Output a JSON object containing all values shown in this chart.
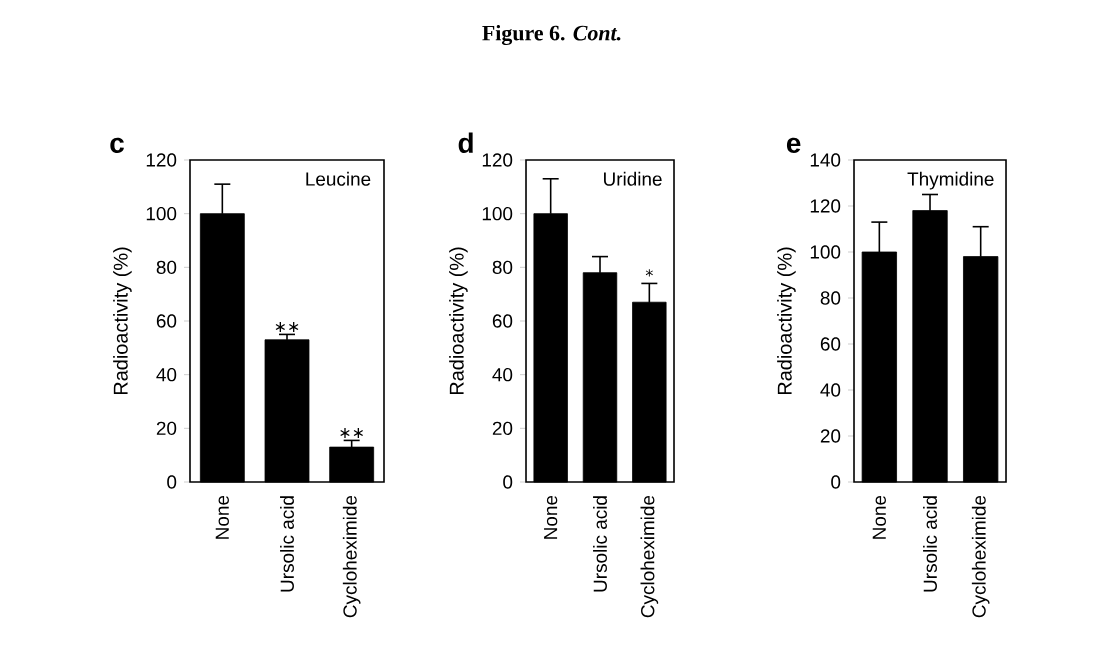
{
  "chart_data": [
    {
      "type": "bar",
      "title": "c",
      "subtitle": "Leucine",
      "categories": [
        "None",
        "Ursolic acid",
        "Cycloheximide"
      ],
      "values": [
        100,
        53,
        13
      ],
      "errors": [
        11,
        2,
        2.5
      ],
      "color": "#000000",
      "ylabel": "Radioactivity (%)",
      "ylim": [
        0,
        120
      ],
      "yticks": [
        0,
        20,
        40,
        60,
        80,
        100,
        120
      ],
      "annotations": [
        "Figure 6. *Cont.*",
        {
          "text": "∗∗",
          "x": "Ursolic acid",
          "y": 55
        },
        {
          "text": "∗∗",
          "x": "Cycloheximide",
          "y": 15.5
        }
      ]
    },
    {
      "type": "bar",
      "title": "d",
      "subtitle": "Uridine",
      "categories": [
        "None",
        "Ursolic acid",
        "Cycloheximide"
      ],
      "values": [
        100,
        78,
        67
      ],
      "errors": [
        13,
        6,
        7
      ],
      "color": "#000000",
      "ylabel": "Radioactivity (%)",
      "ylim": [
        0,
        120
      ],
      "yticks": [
        0,
        20,
        40,
        60,
        80,
        100,
        120
      ],
      "annotations": [
        {
          "text": "*",
          "x": "Cycloheximide",
          "y": 74
        }
      ]
    },
    {
      "type": "bar",
      "title": "e",
      "subtitle": "Thymidine",
      "categories": [
        "None",
        "Ursolic acid",
        "Cycloheximide"
      ],
      "values": [
        100,
        118,
        98
      ],
      "errors": [
        13,
        7,
        13
      ],
      "color": "#000000",
      "ylabel": "Radioactivity (%)",
      "ylim": [
        0,
        140
      ],
      "yticks": [
        0,
        20,
        40,
        60,
        80,
        100,
        120,
        140
      ]
    }
  ]
}
